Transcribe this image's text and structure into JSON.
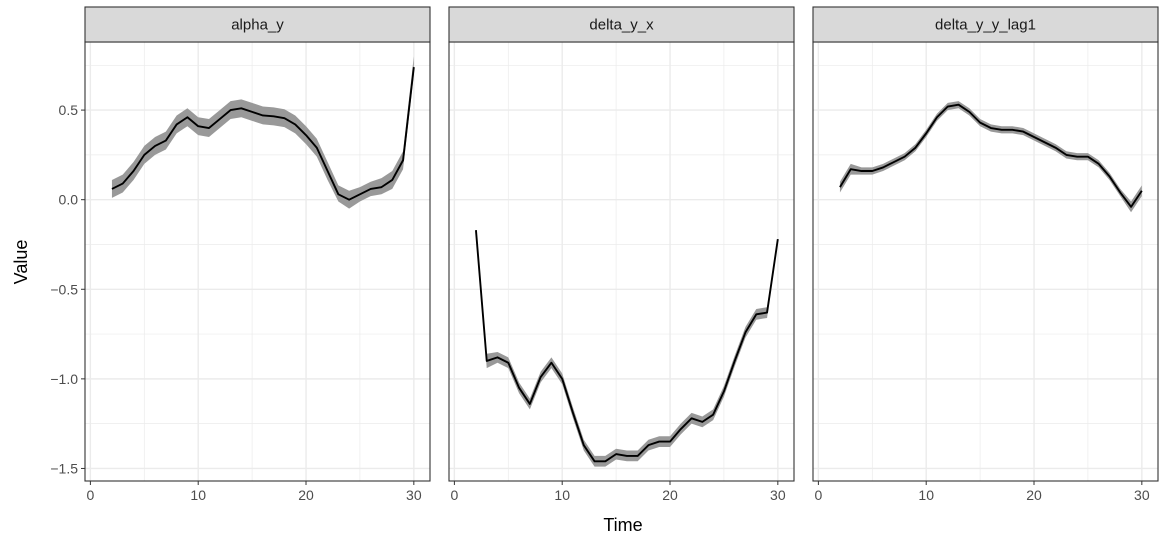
{
  "chart_data": {
    "type": "line",
    "xlabel": "Time",
    "ylabel": "Value",
    "xlim": [
      -0.5,
      31.5
    ],
    "ylim": [
      -1.57,
      0.88
    ],
    "x_ticks": [
      0,
      10,
      20,
      30
    ],
    "y_ticks": [
      0.5,
      0.0,
      -0.5,
      -1.0,
      -1.5
    ],
    "y_tick_labels": [
      "0.5",
      "0.0",
      "−0.5",
      "−1.0",
      "−1.5"
    ],
    "grid": true,
    "legend": "none",
    "colors": {
      "line": "#000000",
      "ribbon": "#999999",
      "strip_fill": "#d9d9d9",
      "grid": "#ebebeb",
      "panel_border": "#333333"
    },
    "panels": [
      {
        "title": "alpha_y",
        "x": [
          2,
          3,
          4,
          5,
          6,
          7,
          8,
          9,
          10,
          11,
          12,
          13,
          14,
          15,
          16,
          17,
          18,
          19,
          20,
          21,
          22,
          23,
          24,
          25,
          26,
          27,
          28,
          29,
          30
        ],
        "y": [
          0.06,
          0.09,
          0.16,
          0.25,
          0.3,
          0.33,
          0.42,
          0.46,
          0.41,
          0.4,
          0.45,
          0.5,
          0.51,
          0.49,
          0.47,
          0.465,
          0.455,
          0.42,
          0.36,
          0.29,
          0.16,
          0.03,
          0.0,
          0.03,
          0.06,
          0.07,
          0.11,
          0.22,
          0.74
        ],
        "lower": [
          0.01,
          0.04,
          0.11,
          0.2,
          0.25,
          0.28,
          0.37,
          0.41,
          0.36,
          0.35,
          0.4,
          0.45,
          0.46,
          0.44,
          0.42,
          0.415,
          0.405,
          0.37,
          0.31,
          0.24,
          0.11,
          -0.01,
          -0.05,
          -0.01,
          0.02,
          0.03,
          0.06,
          0.17,
          0.7
        ],
        "upper": [
          0.11,
          0.14,
          0.21,
          0.3,
          0.35,
          0.38,
          0.47,
          0.51,
          0.46,
          0.45,
          0.5,
          0.55,
          0.56,
          0.54,
          0.52,
          0.515,
          0.505,
          0.47,
          0.41,
          0.34,
          0.21,
          0.08,
          0.05,
          0.07,
          0.1,
          0.12,
          0.16,
          0.27,
          0.8
        ]
      },
      {
        "title": "delta_y_x",
        "x": [
          2,
          3,
          4,
          5,
          6,
          7,
          8,
          9,
          10,
          11,
          12,
          13,
          14,
          15,
          16,
          17,
          18,
          19,
          20,
          21,
          22,
          23,
          24,
          25,
          26,
          27,
          28,
          29,
          30
        ],
        "y": [
          -0.17,
          -0.9,
          -0.88,
          -0.91,
          -1.05,
          -1.14,
          -0.99,
          -0.91,
          -1.0,
          -1.19,
          -1.37,
          -1.46,
          -1.46,
          -1.42,
          -1.43,
          -1.43,
          -1.37,
          -1.35,
          -1.35,
          -1.28,
          -1.22,
          -1.24,
          -1.2,
          -1.07,
          -0.9,
          -0.74,
          -0.64,
          -0.63,
          -0.22
        ],
        "lower": [
          -0.17,
          -0.94,
          -0.91,
          -0.94,
          -1.08,
          -1.17,
          -1.02,
          -0.94,
          -1.03,
          -1.22,
          -1.4,
          -1.49,
          -1.49,
          -1.45,
          -1.46,
          -1.46,
          -1.4,
          -1.38,
          -1.38,
          -1.31,
          -1.25,
          -1.27,
          -1.23,
          -1.1,
          -0.93,
          -0.77,
          -0.67,
          -0.66,
          -0.22
        ],
        "upper": [
          -0.17,
          -0.86,
          -0.85,
          -0.88,
          -1.02,
          -1.11,
          -0.96,
          -0.88,
          -0.97,
          -1.16,
          -1.34,
          -1.43,
          -1.43,
          -1.39,
          -1.4,
          -1.4,
          -1.34,
          -1.32,
          -1.32,
          -1.25,
          -1.19,
          -1.21,
          -1.17,
          -1.04,
          -0.87,
          -0.71,
          -0.61,
          -0.6,
          -0.22
        ]
      },
      {
        "title": "delta_y_y_lag1",
        "x": [
          2,
          3,
          4,
          5,
          6,
          7,
          8,
          9,
          10,
          11,
          12,
          13,
          14,
          15,
          16,
          17,
          18,
          19,
          20,
          21,
          22,
          23,
          24,
          25,
          26,
          27,
          28,
          29,
          30
        ],
        "y": [
          0.07,
          0.17,
          0.16,
          0.16,
          0.18,
          0.21,
          0.24,
          0.29,
          0.37,
          0.46,
          0.52,
          0.53,
          0.49,
          0.43,
          0.4,
          0.39,
          0.39,
          0.38,
          0.35,
          0.32,
          0.29,
          0.25,
          0.24,
          0.24,
          0.2,
          0.13,
          0.04,
          -0.04,
          0.05
        ],
        "lower": [
          0.04,
          0.14,
          0.14,
          0.14,
          0.16,
          0.19,
          0.22,
          0.27,
          0.35,
          0.44,
          0.5,
          0.51,
          0.47,
          0.41,
          0.38,
          0.37,
          0.37,
          0.36,
          0.33,
          0.3,
          0.27,
          0.23,
          0.22,
          0.22,
          0.18,
          0.11,
          0.02,
          -0.07,
          0.02
        ],
        "upper": [
          0.1,
          0.2,
          0.18,
          0.18,
          0.2,
          0.23,
          0.26,
          0.31,
          0.39,
          0.48,
          0.54,
          0.55,
          0.51,
          0.45,
          0.42,
          0.41,
          0.41,
          0.4,
          0.37,
          0.34,
          0.31,
          0.27,
          0.26,
          0.26,
          0.22,
          0.15,
          0.06,
          -0.01,
          0.08
        ]
      }
    ]
  }
}
